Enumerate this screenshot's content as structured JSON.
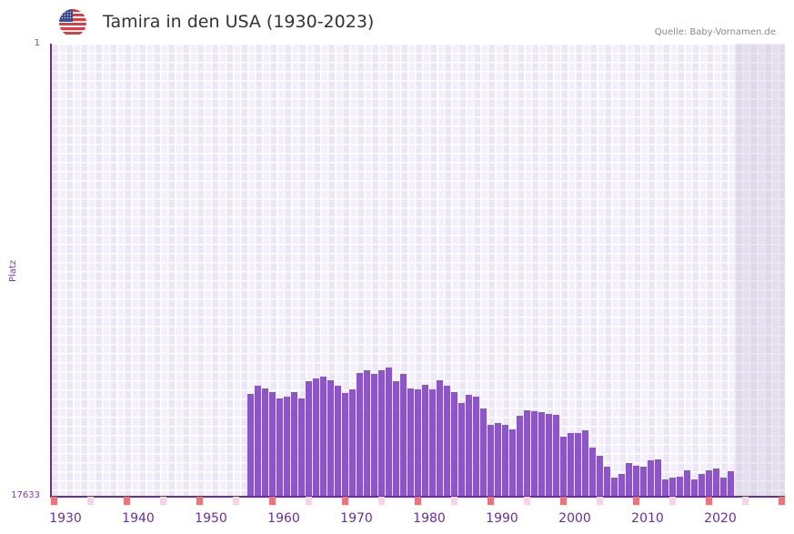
{
  "header": {
    "title": "Tamira in den USA (1930-2023)",
    "source": "Quelle: Baby-Vornamen.de",
    "flag_icon": "usa-flag-icon"
  },
  "colors": {
    "bar": "#8b56c6",
    "axis": "#6a2f9f",
    "decade_marker": "#e8747c",
    "half_decade_marker": "#f5d5df",
    "future_shade": "#e2dcec"
  },
  "chart_data": {
    "type": "bar",
    "title": "Tamira in den USA (1930-2023)",
    "xlabel": "",
    "ylabel": "Platz",
    "y_inverted": true,
    "ylim": [
      1,
      17633
    ],
    "y_ticks": [
      "1",
      "17633"
    ],
    "x_range": [
      1930,
      2030
    ],
    "x_ticks": [
      "1930",
      "1940",
      "1950",
      "1960",
      "1970",
      "1980",
      "1990",
      "2000",
      "2010",
      "2020"
    ],
    "grid": true,
    "legend": null,
    "categories": [
      1957,
      1958,
      1959,
      1960,
      1961,
      1962,
      1963,
      1964,
      1965,
      1966,
      1967,
      1968,
      1969,
      1970,
      1971,
      1972,
      1973,
      1974,
      1975,
      1976,
      1977,
      1978,
      1979,
      1980,
      1981,
      1982,
      1983,
      1984,
      1985,
      1986,
      1987,
      1988,
      1989,
      1990,
      1991,
      1992,
      1993,
      1994,
      1995,
      1996,
      1997,
      1998,
      1999,
      2000,
      2001,
      2002,
      2003,
      2004,
      2005,
      2006,
      2007,
      2008,
      2009,
      2010,
      2011,
      2012,
      2013,
      2014,
      2015,
      2016,
      2017,
      2018,
      2019,
      2020,
      2021,
      2022,
      2023
    ],
    "values": [
      13660,
      13340,
      13447,
      13589,
      13837,
      13766,
      13589,
      13837,
      13163,
      13056,
      12985,
      13127,
      13340,
      13624,
      13482,
      12844,
      12737,
      12879,
      12737,
      12631,
      13163,
      12879,
      13447,
      13482,
      13305,
      13482,
      13127,
      13340,
      13589,
      14015,
      13695,
      13766,
      14228,
      14867,
      14796,
      14867,
      15044,
      14512,
      14299,
      14334,
      14370,
      14441,
      14476,
      15328,
      15186,
      15186,
      15080,
      15754,
      16073,
      16499,
      16925,
      16783,
      16357,
      16463,
      16499,
      16251,
      16215,
      16996,
      16925,
      16890,
      16641,
      16996,
      16783,
      16641,
      16570,
      16925,
      16677
    ]
  }
}
